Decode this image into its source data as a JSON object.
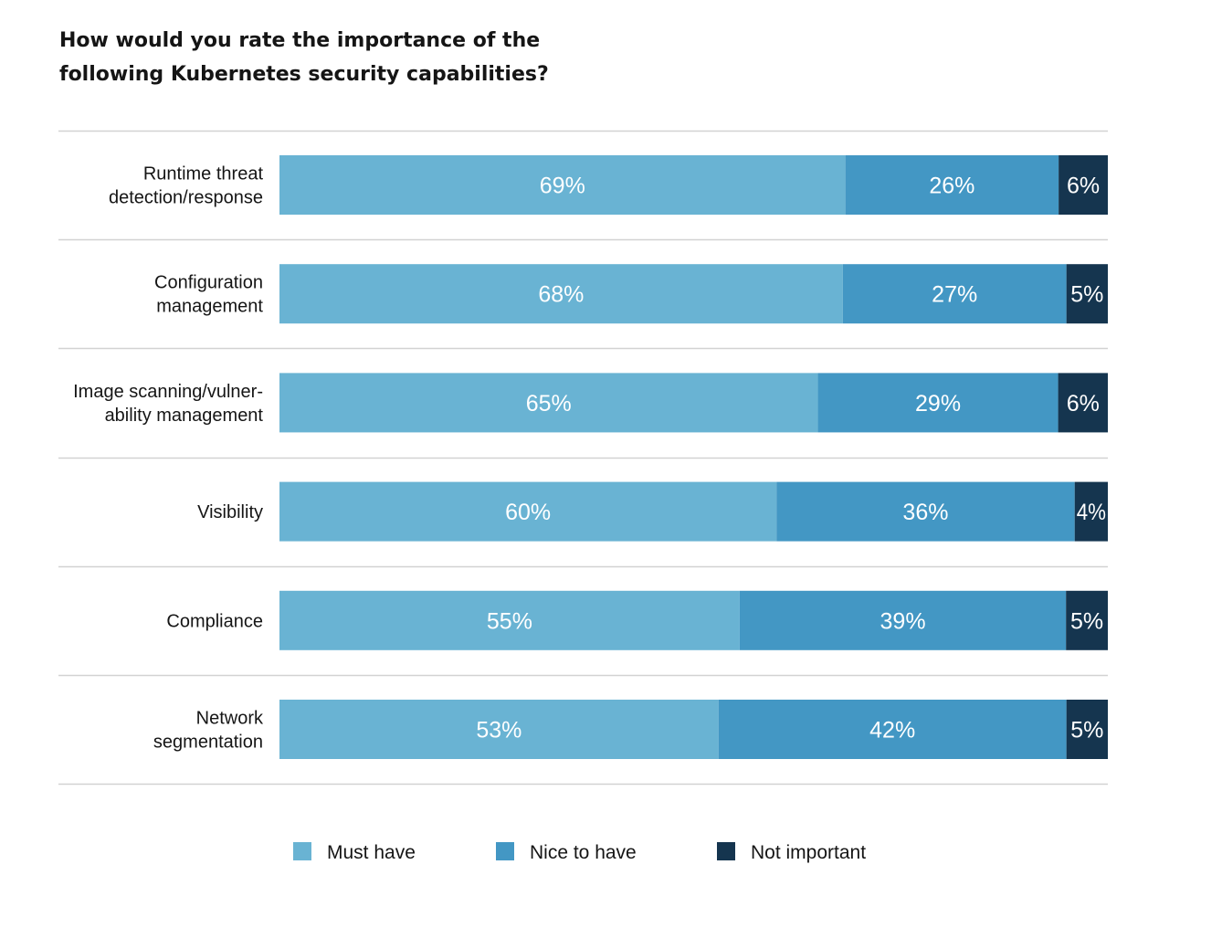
{
  "chart_data": {
    "type": "bar",
    "orientation": "horizontal",
    "stacked": true,
    "title": "How would you rate the importance of the following Kubernetes security capabilities?",
    "categories": [
      [
        "Runtime threat",
        "detection/response"
      ],
      [
        "Configuration",
        "management"
      ],
      [
        "Image scanning/vulner-",
        "ability management"
      ],
      [
        "Visibility"
      ],
      [
        "Compliance"
      ],
      [
        "Network",
        "segmentation"
      ]
    ],
    "series": [
      {
        "name": "Must have",
        "color": "#69b3d3",
        "values": [
          69,
          68,
          65,
          60,
          55,
          53
        ]
      },
      {
        "name": "Nice to have",
        "color": "#4397c4",
        "values": [
          26,
          27,
          29,
          36,
          39,
          42
        ]
      },
      {
        "name": "Not important",
        "color": "#15354f",
        "values": [
          6,
          5,
          6,
          4,
          5,
          5
        ]
      }
    ],
    "value_suffix": "%",
    "legend_position": "bottom",
    "grid": true
  }
}
